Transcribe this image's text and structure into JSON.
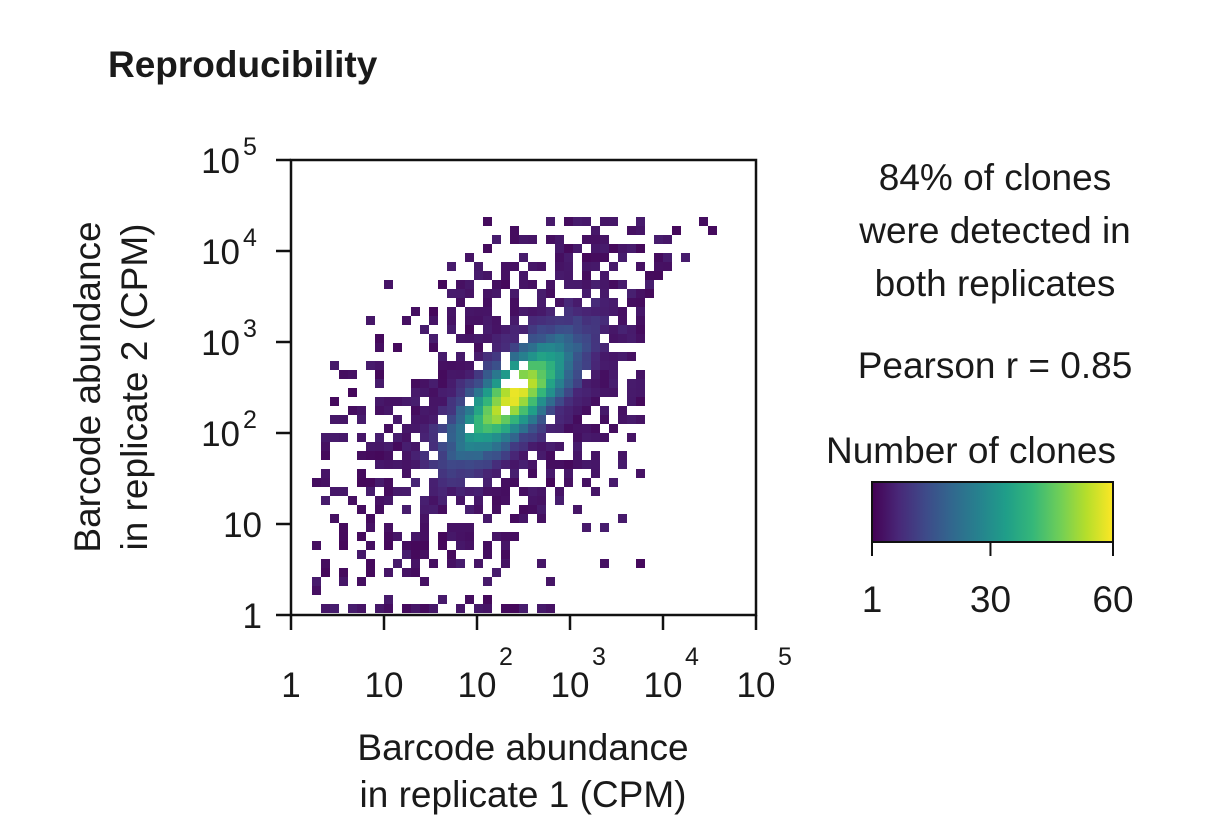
{
  "chart_data": {
    "type": "heatmap",
    "title": "Reproducibility",
    "xlabel": [
      "Barcode abundance",
      "in replicate 1 (CPM)"
    ],
    "ylabel": [
      "Barcode abundance",
      "in replicate 2 (CPM)"
    ],
    "xscale": "log",
    "yscale": "log",
    "xlim": [
      1,
      100000
    ],
    "ylim": [
      1,
      100000
    ],
    "x_ticks": [
      {
        "value": 1,
        "base": "1",
        "exp": ""
      },
      {
        "value": 10,
        "base": "10",
        "exp": ""
      },
      {
        "value": 100,
        "base": "10",
        "exp": "2"
      },
      {
        "value": 1000,
        "base": "10",
        "exp": "3"
      },
      {
        "value": 10000,
        "base": "10",
        "exp": "4"
      },
      {
        "value": 100000,
        "base": "10",
        "exp": "5"
      }
    ],
    "y_ticks": [
      {
        "value": 1,
        "base": "1",
        "exp": ""
      },
      {
        "value": 10,
        "base": "10",
        "exp": ""
      },
      {
        "value": 100,
        "base": "10",
        "exp": "2"
      },
      {
        "value": 1000,
        "base": "10",
        "exp": "3"
      },
      {
        "value": 10000,
        "base": "10",
        "exp": "4"
      },
      {
        "value": 100000,
        "base": "10",
        "exp": "5"
      }
    ],
    "correlation": {
      "center_log10": 2.4,
      "slope": 1.0
    },
    "colorbar": {
      "label": "Number of clones",
      "min": 1,
      "max": 60,
      "ticks": [
        {
          "value": 1,
          "label": "1"
        },
        {
          "value": 30,
          "label": "30"
        },
        {
          "value": 60,
          "label": "60"
        }
      ],
      "colormap": "viridis",
      "colors": [
        "#440154",
        "#482878",
        "#3e4a89",
        "#31688e",
        "#26828e",
        "#1f9e89",
        "#35b779",
        "#6ece58",
        "#b5de2b",
        "#fde725"
      ]
    },
    "annotations": [
      [
        "84% of clones",
        "were detected in",
        "both replicates"
      ],
      [
        "Pearson r = 0.85"
      ]
    ]
  }
}
